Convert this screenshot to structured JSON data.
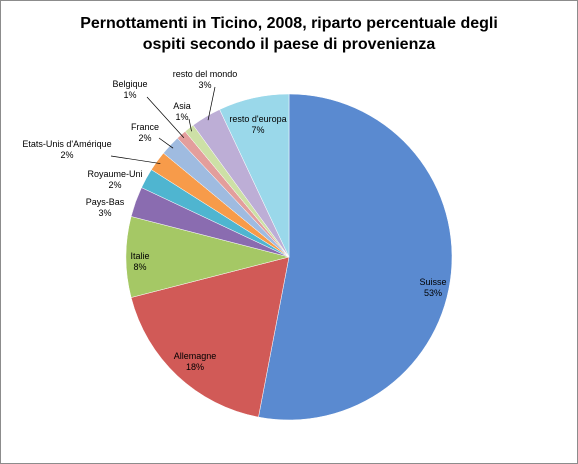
{
  "chart_data": {
    "type": "pie",
    "title": "Pernottamenti in Ticino, 2008, riparto percentuale degli ospiti secondo il paese di provenienza",
    "categories": [
      "Suisse",
      "Allemagne",
      "Italie",
      "Pays-Bas",
      "Royaume-Uni",
      "Etats-Unis d'Amérique",
      "France",
      "Belgique",
      "Asia",
      "resto del mondo",
      "resto d'europa"
    ],
    "values": [
      53,
      18,
      8,
      3,
      2,
      2,
      2,
      1,
      1,
      3,
      7
    ],
    "value_labels": [
      "53%",
      "18%",
      "8%",
      "3%",
      "2%",
      "2%",
      "2%",
      "1%",
      "1%",
      "3%",
      "7%"
    ],
    "colors": [
      "#5a8ad0",
      "#d15a57",
      "#a5c865",
      "#8a6cb0",
      "#4fb5d0",
      "#f79b4a",
      "#9fbbe0",
      "#e39e9c",
      "#cde0a6",
      "#bdaed6",
      "#9ad8ea"
    ]
  }
}
